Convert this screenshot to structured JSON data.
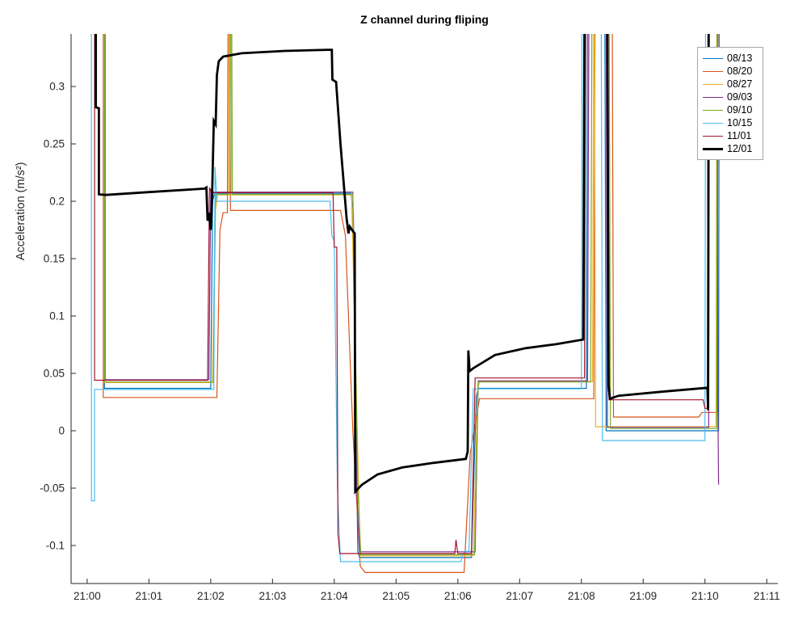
{
  "chart_data": {
    "type": "line",
    "title": "Z channel during fliping",
    "xlabel": "",
    "ylabel": "Acceleration (m/s²)",
    "grid": false,
    "legend_position": "northeast",
    "x_unit": "minutes after 21:00",
    "xlim": [
      -0.26,
      11.18
    ],
    "ylim": [
      -0.1331,
      0.3458
    ],
    "x_ticks": {
      "values": [
        0,
        1,
        2,
        3,
        4,
        5,
        6,
        7,
        8,
        9,
        10,
        11
      ],
      "labels": [
        "21:00",
        "21:01",
        "21:02",
        "21:03",
        "21:04",
        "21:05",
        "21:06",
        "21:07",
        "21:08",
        "21:09",
        "21:10",
        "21:11"
      ]
    },
    "y_ticks": {
      "values": [
        -0.1,
        -0.05,
        0,
        0.05,
        0.1,
        0.15,
        0.2,
        0.25,
        0.3
      ],
      "labels": [
        "-0.1",
        "-0.05",
        "0",
        "0.05",
        "0.1",
        "0.15",
        "0.2",
        "0.25",
        "0.3"
      ]
    },
    "axis_color": "#262626",
    "series": [
      {
        "name": "08/13",
        "color": "#0072BD",
        "width": 1.2,
        "points": [
          [
            0.28,
            0.36
          ],
          [
            0.28,
            0.037
          ],
          [
            2.0,
            0.037
          ],
          [
            2.03,
            0.2
          ],
          [
            2.06,
            0.207
          ],
          [
            4.27,
            0.207
          ],
          [
            4.31,
            0.19
          ],
          [
            4.38,
            -0.105
          ],
          [
            4.41,
            -0.1105
          ],
          [
            6.22,
            -0.1105
          ],
          [
            6.3,
            0.03
          ],
          [
            6.33,
            0.037
          ],
          [
            8.08,
            0.037
          ],
          [
            8.1,
            0.36
          ],
          [
            8.38,
            0.36
          ],
          [
            8.4,
            0.0
          ],
          [
            10.22,
            0.0
          ],
          [
            10.23,
            0.36
          ]
        ]
      },
      {
        "name": "08/20",
        "color": "#D95319",
        "width": 1.2,
        "points": [
          [
            0.26,
            0.36
          ],
          [
            0.26,
            0.029
          ],
          [
            2.1,
            0.029
          ],
          [
            2.15,
            0.175
          ],
          [
            2.2,
            0.19
          ],
          [
            2.27,
            0.19
          ],
          [
            2.28,
            0.36
          ],
          [
            2.31,
            0.36
          ],
          [
            2.32,
            0.192
          ],
          [
            4.1,
            0.192
          ],
          [
            4.18,
            0.17
          ],
          [
            4.3,
            0.0
          ],
          [
            4.42,
            -0.118
          ],
          [
            4.5,
            -0.1235
          ],
          [
            6.1,
            -0.1235
          ],
          [
            6.2,
            -0.02
          ],
          [
            6.35,
            0.028
          ],
          [
            8.2,
            0.028
          ],
          [
            8.22,
            0.36
          ],
          [
            8.5,
            0.36
          ],
          [
            8.52,
            0.012
          ],
          [
            9.9,
            0.012
          ],
          [
            9.95,
            0.016
          ],
          [
            10.2,
            0.016
          ],
          [
            10.21,
            0.36
          ]
        ]
      },
      {
        "name": "08/27",
        "color": "#EDB120",
        "width": 1.2,
        "points": [
          [
            0.27,
            0.36
          ],
          [
            0.27,
            0.042
          ],
          [
            2.03,
            0.042
          ],
          [
            2.07,
            0.19
          ],
          [
            2.11,
            0.2055
          ],
          [
            2.29,
            0.2055
          ],
          [
            2.3,
            0.36
          ],
          [
            2.33,
            0.36
          ],
          [
            2.34,
            0.2055
          ],
          [
            4.28,
            0.2055
          ],
          [
            4.35,
            0.05
          ],
          [
            4.42,
            -0.109
          ],
          [
            6.25,
            -0.109
          ],
          [
            6.32,
            0.035
          ],
          [
            6.35,
            0.043
          ],
          [
            8.18,
            0.043
          ],
          [
            8.2,
            0.36
          ],
          [
            8.21,
            0.36
          ],
          [
            8.23,
            0.0035
          ],
          [
            10.18,
            0.0035
          ],
          [
            10.19,
            0.36
          ]
        ]
      },
      {
        "name": "09/03",
        "color": "#7E2F8E",
        "width": 1.2,
        "points": [
          [
            0.29,
            0.36
          ],
          [
            0.29,
            0.0445
          ],
          [
            1.97,
            0.0445
          ],
          [
            2.0,
            0.21
          ],
          [
            2.03,
            0.208
          ],
          [
            4.3,
            0.208
          ],
          [
            4.36,
            -0.05
          ],
          [
            4.41,
            -0.1055
          ],
          [
            6.28,
            -0.1055
          ],
          [
            6.33,
            0.0435
          ],
          [
            8.1,
            0.0435
          ],
          [
            8.12,
            0.36
          ],
          [
            8.4,
            0.36
          ],
          [
            8.42,
            0.003
          ],
          [
            10.06,
            0.003
          ],
          [
            10.07,
            0.36
          ],
          [
            10.2,
            0.36
          ],
          [
            10.21,
            0.016
          ],
          [
            10.22,
            -0.047
          ]
        ]
      },
      {
        "name": "09/10",
        "color": "#77AC30",
        "width": 1.2,
        "points": [
          [
            0.28,
            0.36
          ],
          [
            0.28,
            0.0425
          ],
          [
            2.04,
            0.0425
          ],
          [
            2.08,
            0.206
          ],
          [
            2.31,
            0.206
          ],
          [
            2.32,
            0.36
          ],
          [
            2.34,
            0.36
          ],
          [
            2.35,
            0.206
          ],
          [
            4.3,
            0.206
          ],
          [
            4.38,
            -0.05
          ],
          [
            4.43,
            -0.108
          ],
          [
            6.27,
            -0.108
          ],
          [
            6.33,
            0.0425
          ],
          [
            8.15,
            0.0425
          ],
          [
            8.17,
            0.36
          ],
          [
            8.45,
            0.36
          ],
          [
            8.47,
            0.002
          ],
          [
            10.19,
            0.002
          ],
          [
            10.2,
            0.36
          ]
        ]
      },
      {
        "name": "10/15",
        "color": "#4DBEEE",
        "width": 1.2,
        "points": [
          [
            0.07,
            0.36
          ],
          [
            0.07,
            -0.061
          ],
          [
            0.12,
            -0.061
          ],
          [
            0.12,
            0.036
          ],
          [
            2.05,
            0.036
          ],
          [
            2.07,
            0.23
          ],
          [
            2.1,
            0.2
          ],
          [
            3.93,
            0.2
          ],
          [
            3.96,
            0.17
          ],
          [
            4.0,
            0.165
          ],
          [
            4.05,
            -0.05
          ],
          [
            4.1,
            -0.114
          ],
          [
            6.05,
            -0.114
          ],
          [
            6.1,
            -0.105
          ],
          [
            6.18,
            -0.105
          ],
          [
            6.25,
            0.0365
          ],
          [
            8.0,
            0.0365
          ],
          [
            8.01,
            0.36
          ],
          [
            8.32,
            0.36
          ],
          [
            8.34,
            -0.0085
          ],
          [
            10.0,
            -0.0085
          ],
          [
            10.01,
            0.36
          ]
        ]
      },
      {
        "name": "11/01",
        "color": "#A2142F",
        "width": 1.2,
        "points": [
          [
            0.12,
            0.36
          ],
          [
            0.12,
            0.044
          ],
          [
            1.95,
            0.044
          ],
          [
            1.98,
            0.212
          ],
          [
            2.01,
            0.2075
          ],
          [
            3.98,
            0.2075
          ],
          [
            4.0,
            0.16
          ],
          [
            4.04,
            0.16
          ],
          [
            4.06,
            -0.09
          ],
          [
            4.09,
            -0.107
          ],
          [
            5.95,
            -0.107
          ],
          [
            5.97,
            -0.095
          ],
          [
            6.0,
            -0.107
          ],
          [
            6.22,
            -0.107
          ],
          [
            6.28,
            0.046
          ],
          [
            8.05,
            0.046
          ],
          [
            8.07,
            0.36
          ],
          [
            8.43,
            0.36
          ],
          [
            8.45,
            0.027
          ],
          [
            9.97,
            0.027
          ],
          [
            10.0,
            0.0195
          ],
          [
            10.04,
            0.0195
          ],
          [
            10.05,
            0.36
          ]
        ]
      },
      {
        "name": "12/01",
        "color": "#000000",
        "width": 2.8,
        "points": [
          [
            0.14,
            0.36
          ],
          [
            0.14,
            0.282
          ],
          [
            0.19,
            0.281
          ],
          [
            0.19,
            0.206
          ],
          [
            0.3,
            0.2055
          ],
          [
            1.0,
            0.208
          ],
          [
            1.9,
            0.211
          ],
          [
            1.93,
            0.212
          ],
          [
            1.95,
            0.183
          ],
          [
            1.97,
            0.19
          ],
          [
            2.0,
            0.175
          ],
          [
            2.02,
            0.2
          ],
          [
            2.05,
            0.27
          ],
          [
            2.08,
            0.267
          ],
          [
            2.1,
            0.31
          ],
          [
            2.13,
            0.322
          ],
          [
            2.2,
            0.326
          ],
          [
            2.5,
            0.329
          ],
          [
            3.2,
            0.331
          ],
          [
            3.9,
            0.332
          ],
          [
            3.96,
            0.332
          ],
          [
            3.97,
            0.306
          ],
          [
            4.03,
            0.304
          ],
          [
            4.1,
            0.25
          ],
          [
            4.2,
            0.185
          ],
          [
            4.23,
            0.172
          ],
          [
            4.25,
            0.178
          ],
          [
            4.3,
            0.174
          ],
          [
            4.33,
            0.172
          ],
          [
            4.34,
            -0.053
          ],
          [
            4.45,
            -0.047
          ],
          [
            4.7,
            -0.038
          ],
          [
            5.1,
            -0.032
          ],
          [
            5.6,
            -0.028
          ],
          [
            6.13,
            -0.0245
          ],
          [
            6.16,
            -0.018
          ],
          [
            6.17,
            0.07
          ],
          [
            6.19,
            0.052
          ],
          [
            6.25,
            0.0545
          ],
          [
            6.6,
            0.066
          ],
          [
            7.1,
            0.072
          ],
          [
            7.6,
            0.0755
          ],
          [
            8.03,
            0.0795
          ],
          [
            8.05,
            0.36
          ],
          [
            8.42,
            0.36
          ],
          [
            8.44,
            0.04
          ],
          [
            8.46,
            0.028
          ],
          [
            8.6,
            0.0305
          ],
          [
            9.3,
            0.034
          ],
          [
            10.04,
            0.0375
          ],
          [
            10.05,
            0.018
          ],
          [
            10.06,
            0.36
          ]
        ]
      }
    ]
  }
}
